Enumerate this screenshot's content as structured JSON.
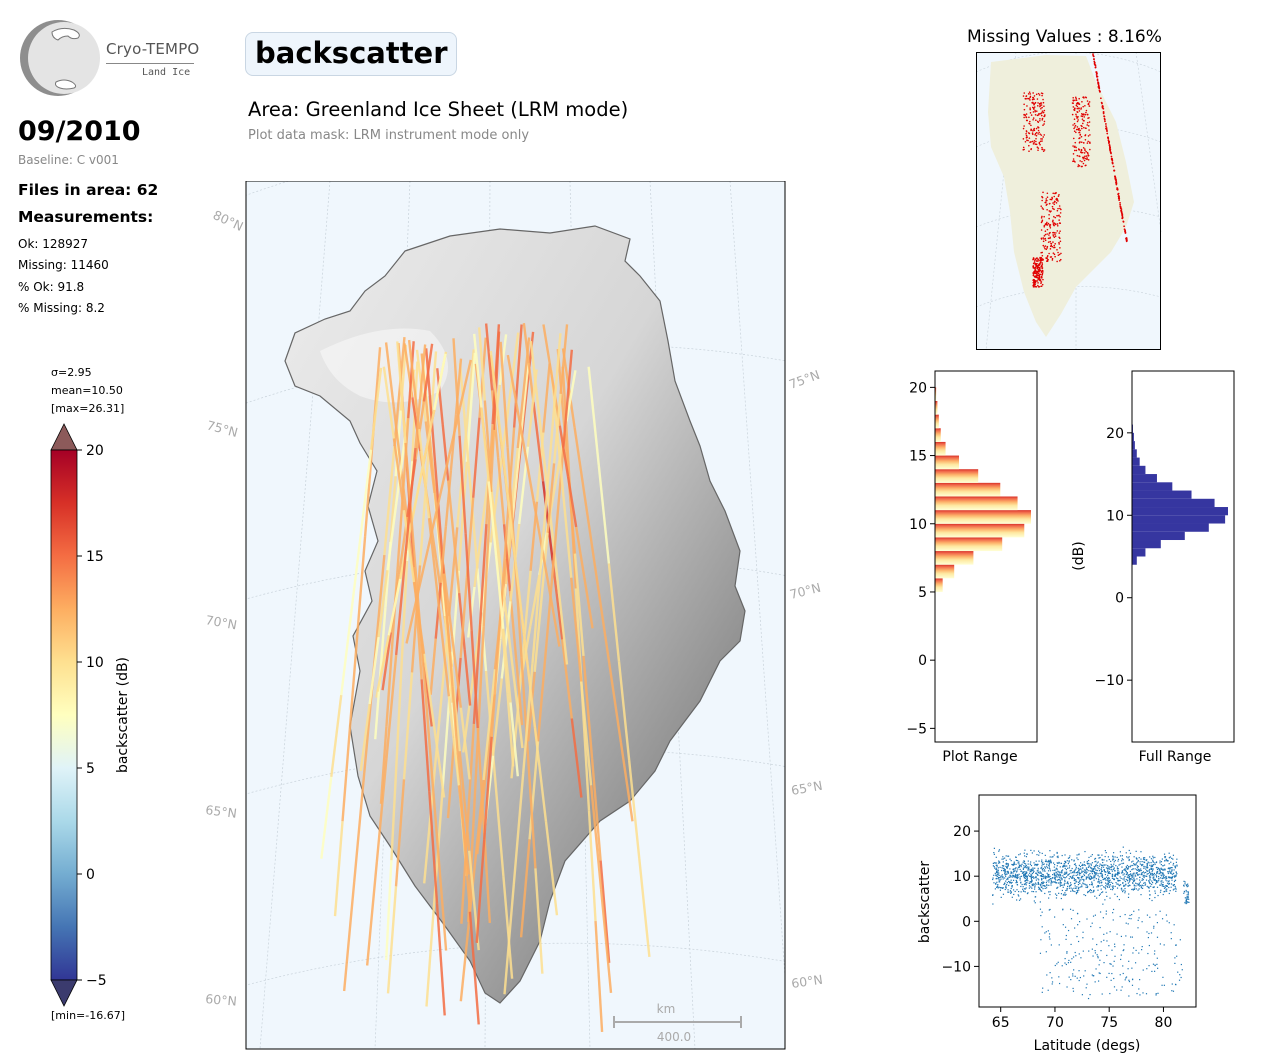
{
  "logo": {
    "title": "Cryo-TEMPO",
    "subtitle": "Land Ice"
  },
  "header": {
    "title": "backscatter",
    "area": "Area: Greenland Ice Sheet (LRM mode)",
    "mask_note": "Plot data mask: LRM instrument mode only"
  },
  "left_panel": {
    "date": "09/2010",
    "baseline": "Baseline: C v001",
    "files": "Files in area: 62",
    "measurements_heading": "Measurements:",
    "ok": "Ok: 128927",
    "missing": "Missing: 11460",
    "pct_ok": "% Ok: 91.8",
    "pct_missing": "% Missing: 8.2"
  },
  "colorbar": {
    "label": "backscatter (dB)",
    "sigma": "σ=2.95",
    "mean": "mean=10.50",
    "max": "[max=26.31]",
    "min": "[min=-16.67]",
    "ticks": [
      "20",
      "15",
      "10",
      "5",
      "0",
      "−5"
    ],
    "colors": [
      "#313695",
      "#4575b4",
      "#74add1",
      "#abd9e9",
      "#e0f3f8",
      "#ffffbf",
      "#fee090",
      "#fdae61",
      "#f46d43",
      "#d73027",
      "#a50026"
    ]
  },
  "map": {
    "lat_labels": [
      "80°N",
      "75°N",
      "70°N",
      "65°N",
      "60°N"
    ],
    "scale_unit": "km",
    "scale_value": "400.0",
    "ocean_color": "#f0f7fd"
  },
  "missing_panel": {
    "title": "Missing Values : 8.16%",
    "marker_color": "#e00000",
    "land_color": "#efefdc"
  },
  "chart_data": [
    {
      "type": "bar",
      "orientation": "horizontal",
      "title": "",
      "xlabel": "Plot Range",
      "ylabel": "",
      "ylim": [
        -6,
        21.2
      ],
      "yticks": [
        "20",
        "15",
        "10",
        "5",
        "0",
        "−5"
      ],
      "bins_center_db": [
        5.5,
        6.5,
        7.5,
        8.5,
        9.5,
        10.5,
        11.5,
        12.5,
        13.5,
        14.5,
        15.5,
        16.5,
        17.5,
        18.5,
        19.5
      ],
      "relative_counts": [
        0.08,
        0.2,
        0.4,
        0.7,
        0.93,
        1.0,
        0.86,
        0.68,
        0.45,
        0.25,
        0.11,
        0.06,
        0.04,
        0.025,
        0.012
      ]
    },
    {
      "type": "bar",
      "orientation": "horizontal",
      "title": "",
      "xlabel": "Full Range",
      "ylabel": "(dB)",
      "ylim": [
        -17.5,
        27.5
      ],
      "yticks": [
        "20",
        "10",
        "0",
        "−10"
      ],
      "bins_center_db": [
        4.5,
        5.5,
        6.5,
        7.5,
        8.5,
        9.5,
        10.5,
        11.5,
        12.5,
        13.5,
        14.5,
        15.5,
        16.5,
        17.5,
        18.5,
        19.5,
        20.5
      ],
      "relative_counts": [
        0.05,
        0.14,
        0.3,
        0.55,
        0.8,
        0.97,
        1.0,
        0.86,
        0.62,
        0.42,
        0.26,
        0.14,
        0.08,
        0.05,
        0.03,
        0.02,
        0.01
      ],
      "bar_color": "#3636a0"
    },
    {
      "type": "scatter",
      "title": "",
      "xlabel": "Latitude (degs)",
      "ylabel": "backscatter",
      "xlim": [
        63,
        83
      ],
      "ylim": [
        -19,
        28
      ],
      "xticks": [
        "65",
        "70",
        "75",
        "80"
      ],
      "yticks": [
        "20",
        "10",
        "0",
        "−10"
      ],
      "color": "#1f77b4",
      "main_band": {
        "x_range": [
          64.2,
          81.2
        ],
        "y_center": 10.5,
        "y_spread": 6
      },
      "low_outliers": {
        "x_range": [
          68.5,
          81.8
        ],
        "y_range": [
          -17,
          3
        ]
      },
      "tail": {
        "x_range": [
          81.8,
          82.3
        ],
        "y_range": [
          4,
          9
        ]
      }
    }
  ]
}
